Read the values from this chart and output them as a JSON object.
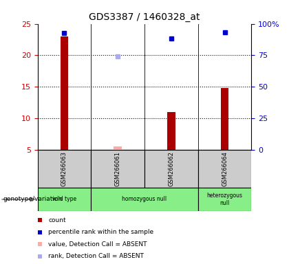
{
  "title": "GDS3387 / 1460328_at",
  "samples": [
    "GSM266063",
    "GSM266061",
    "GSM266062",
    "GSM266064"
  ],
  "bar_values": [
    23.0,
    5.5,
    11.0,
    14.8
  ],
  "bar_colors": [
    "#aa0000",
    "#ffaaaa",
    "#aa0000",
    "#aa0000"
  ],
  "bar_absent": [
    false,
    true,
    false,
    false
  ],
  "percentile_values": [
    23.5,
    19.8,
    22.7,
    23.6
  ],
  "percentile_absent": [
    false,
    true,
    false,
    false
  ],
  "percentile_colors_normal": "#0000cc",
  "percentile_colors_absent": "#aaaaee",
  "ylim_left": [
    5,
    25
  ],
  "ylim_right": [
    0,
    100
  ],
  "yticks_left": [
    5,
    10,
    15,
    20,
    25
  ],
  "yticks_right": [
    0,
    25,
    50,
    75,
    100
  ],
  "ytick_labels_right": [
    "0",
    "25",
    "50",
    "75",
    "100%"
  ],
  "group_labels": [
    "wild type",
    "homozygous null",
    "heterozygous\nnull"
  ],
  "group_ranges": [
    [
      0,
      0
    ],
    [
      1,
      2
    ],
    [
      3,
      3
    ]
  ],
  "group_color": "#88ee88",
  "legend_items": [
    {
      "color": "#aa0000",
      "label": "count"
    },
    {
      "color": "#0000cc",
      "label": "percentile rank within the sample"
    },
    {
      "color": "#ffaaaa",
      "label": "value, Detection Call = ABSENT"
    },
    {
      "color": "#aaaaee",
      "label": "rank, Detection Call = ABSENT"
    }
  ],
  "ylabel_left_color": "#cc0000",
  "ylabel_right_color": "#0000cc",
  "sample_bg_color": "#cccccc",
  "bar_width": 0.15
}
